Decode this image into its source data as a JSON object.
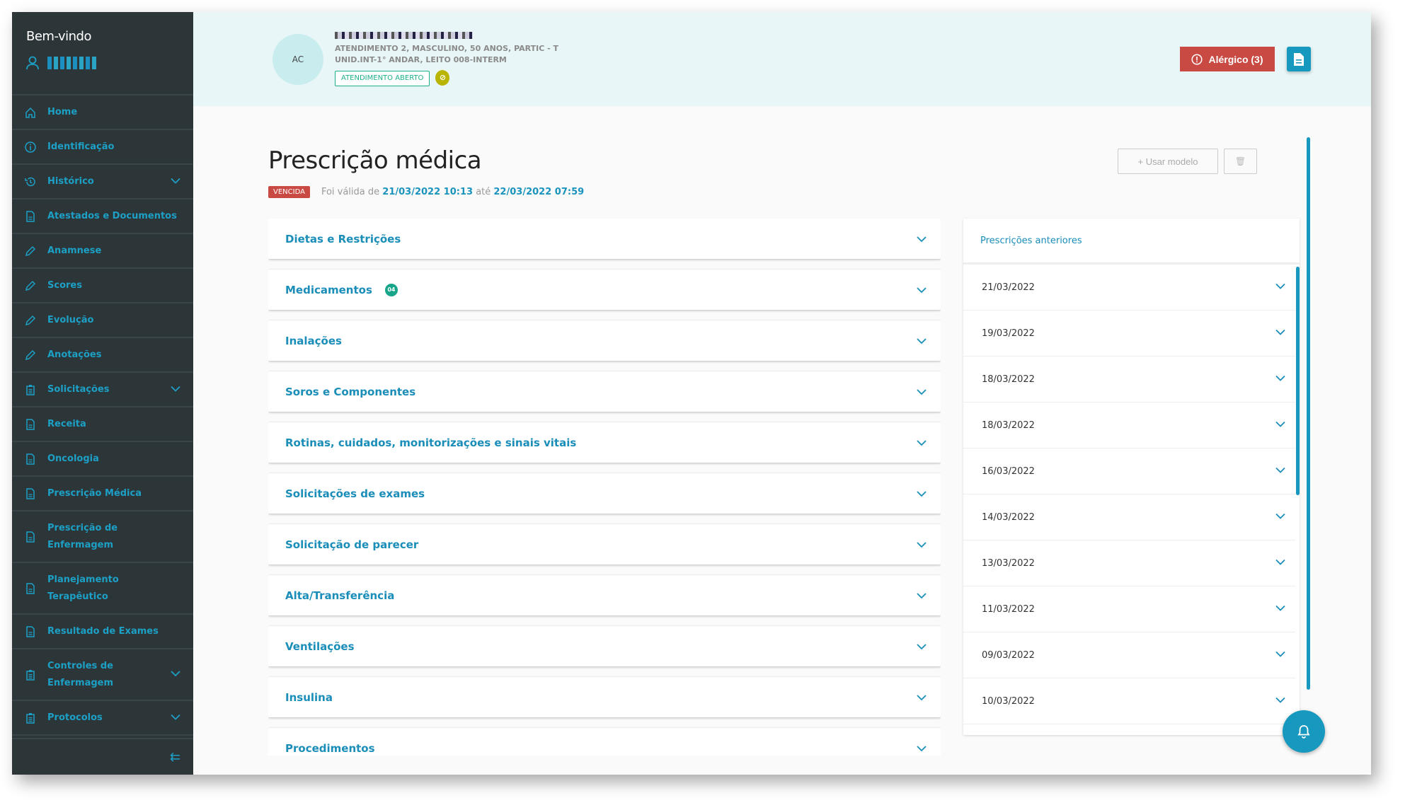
{
  "sidebar": {
    "welcome": "Bem-vindo",
    "items": [
      {
        "label": "Home",
        "icon": "home-icon"
      },
      {
        "label": "Identificação",
        "icon": "info-icon"
      },
      {
        "label": "Histórico",
        "icon": "history-icon",
        "expandable": true
      },
      {
        "label": "Atestados e Documentos",
        "icon": "document-icon"
      },
      {
        "label": "Anamnese",
        "icon": "pencil-icon"
      },
      {
        "label": "Scores",
        "icon": "pencil-icon"
      },
      {
        "label": "Evolução",
        "icon": "pencil-icon"
      },
      {
        "label": "Anotações",
        "icon": "pencil-icon"
      },
      {
        "label": "Solicitações",
        "icon": "clipboard-icon",
        "expandable": true
      },
      {
        "label": "Receita",
        "icon": "document-icon"
      },
      {
        "label": "Oncologia",
        "icon": "document-icon"
      },
      {
        "label": "Prescrição Médica",
        "icon": "document-icon"
      },
      {
        "label": "Prescrição de Enfermagem",
        "icon": "document-icon"
      },
      {
        "label": "Planejamento Terapêutico",
        "icon": "document-icon"
      },
      {
        "label": "Resultado de Exames",
        "icon": "document-icon"
      },
      {
        "label": "Controles de Enfermagem",
        "icon": "clipboard-icon",
        "expandable": true
      },
      {
        "label": "Protocolos",
        "icon": "clipboard-icon",
        "expandable": true
      }
    ]
  },
  "header": {
    "avatar_initials": "AC",
    "line1": "ATENDIMENTO 2, MASCULINO, 50 ANOS, PARTIC - T",
    "line2": "UNID.INT-1° ANDAR, LEITO 008-INTERM",
    "status": "ATENDIMENTO ABERTO",
    "allergy_label": "Alérgico (3)"
  },
  "page": {
    "title": "Prescrição médica",
    "status": "VENCIDA",
    "valid_prefix": "Foi válida de",
    "valid_from": "21/03/2022 10:13",
    "valid_mid": "até",
    "valid_to": "22/03/2022 07:59",
    "use_model": "+ Usar modelo"
  },
  "sections": [
    {
      "label": "Dietas e Restrições"
    },
    {
      "label": "Medicamentos",
      "count": "04"
    },
    {
      "label": "Inalações"
    },
    {
      "label": "Soros e Componentes"
    },
    {
      "label": "Rotinas, cuidados, monitorizações e sinais vitais"
    },
    {
      "label": "Solicitações de exames"
    },
    {
      "label": "Solicitação de parecer"
    },
    {
      "label": "Alta/Transferência"
    },
    {
      "label": "Ventilações"
    },
    {
      "label": "Insulina"
    },
    {
      "label": "Procedimentos"
    }
  ],
  "previous": {
    "title": "Prescrições anteriores",
    "dates": [
      "21/03/2022",
      "19/03/2022",
      "18/03/2022",
      "18/03/2022",
      "16/03/2022",
      "14/03/2022",
      "13/03/2022",
      "11/03/2022",
      "09/03/2022",
      "10/03/2022"
    ]
  },
  "colors": {
    "sidebar_bg": "#2c3538",
    "accent": "#1798bf",
    "danger": "#c84a43",
    "header_bg": "#e8f6f7",
    "success": "#1cb08a"
  }
}
